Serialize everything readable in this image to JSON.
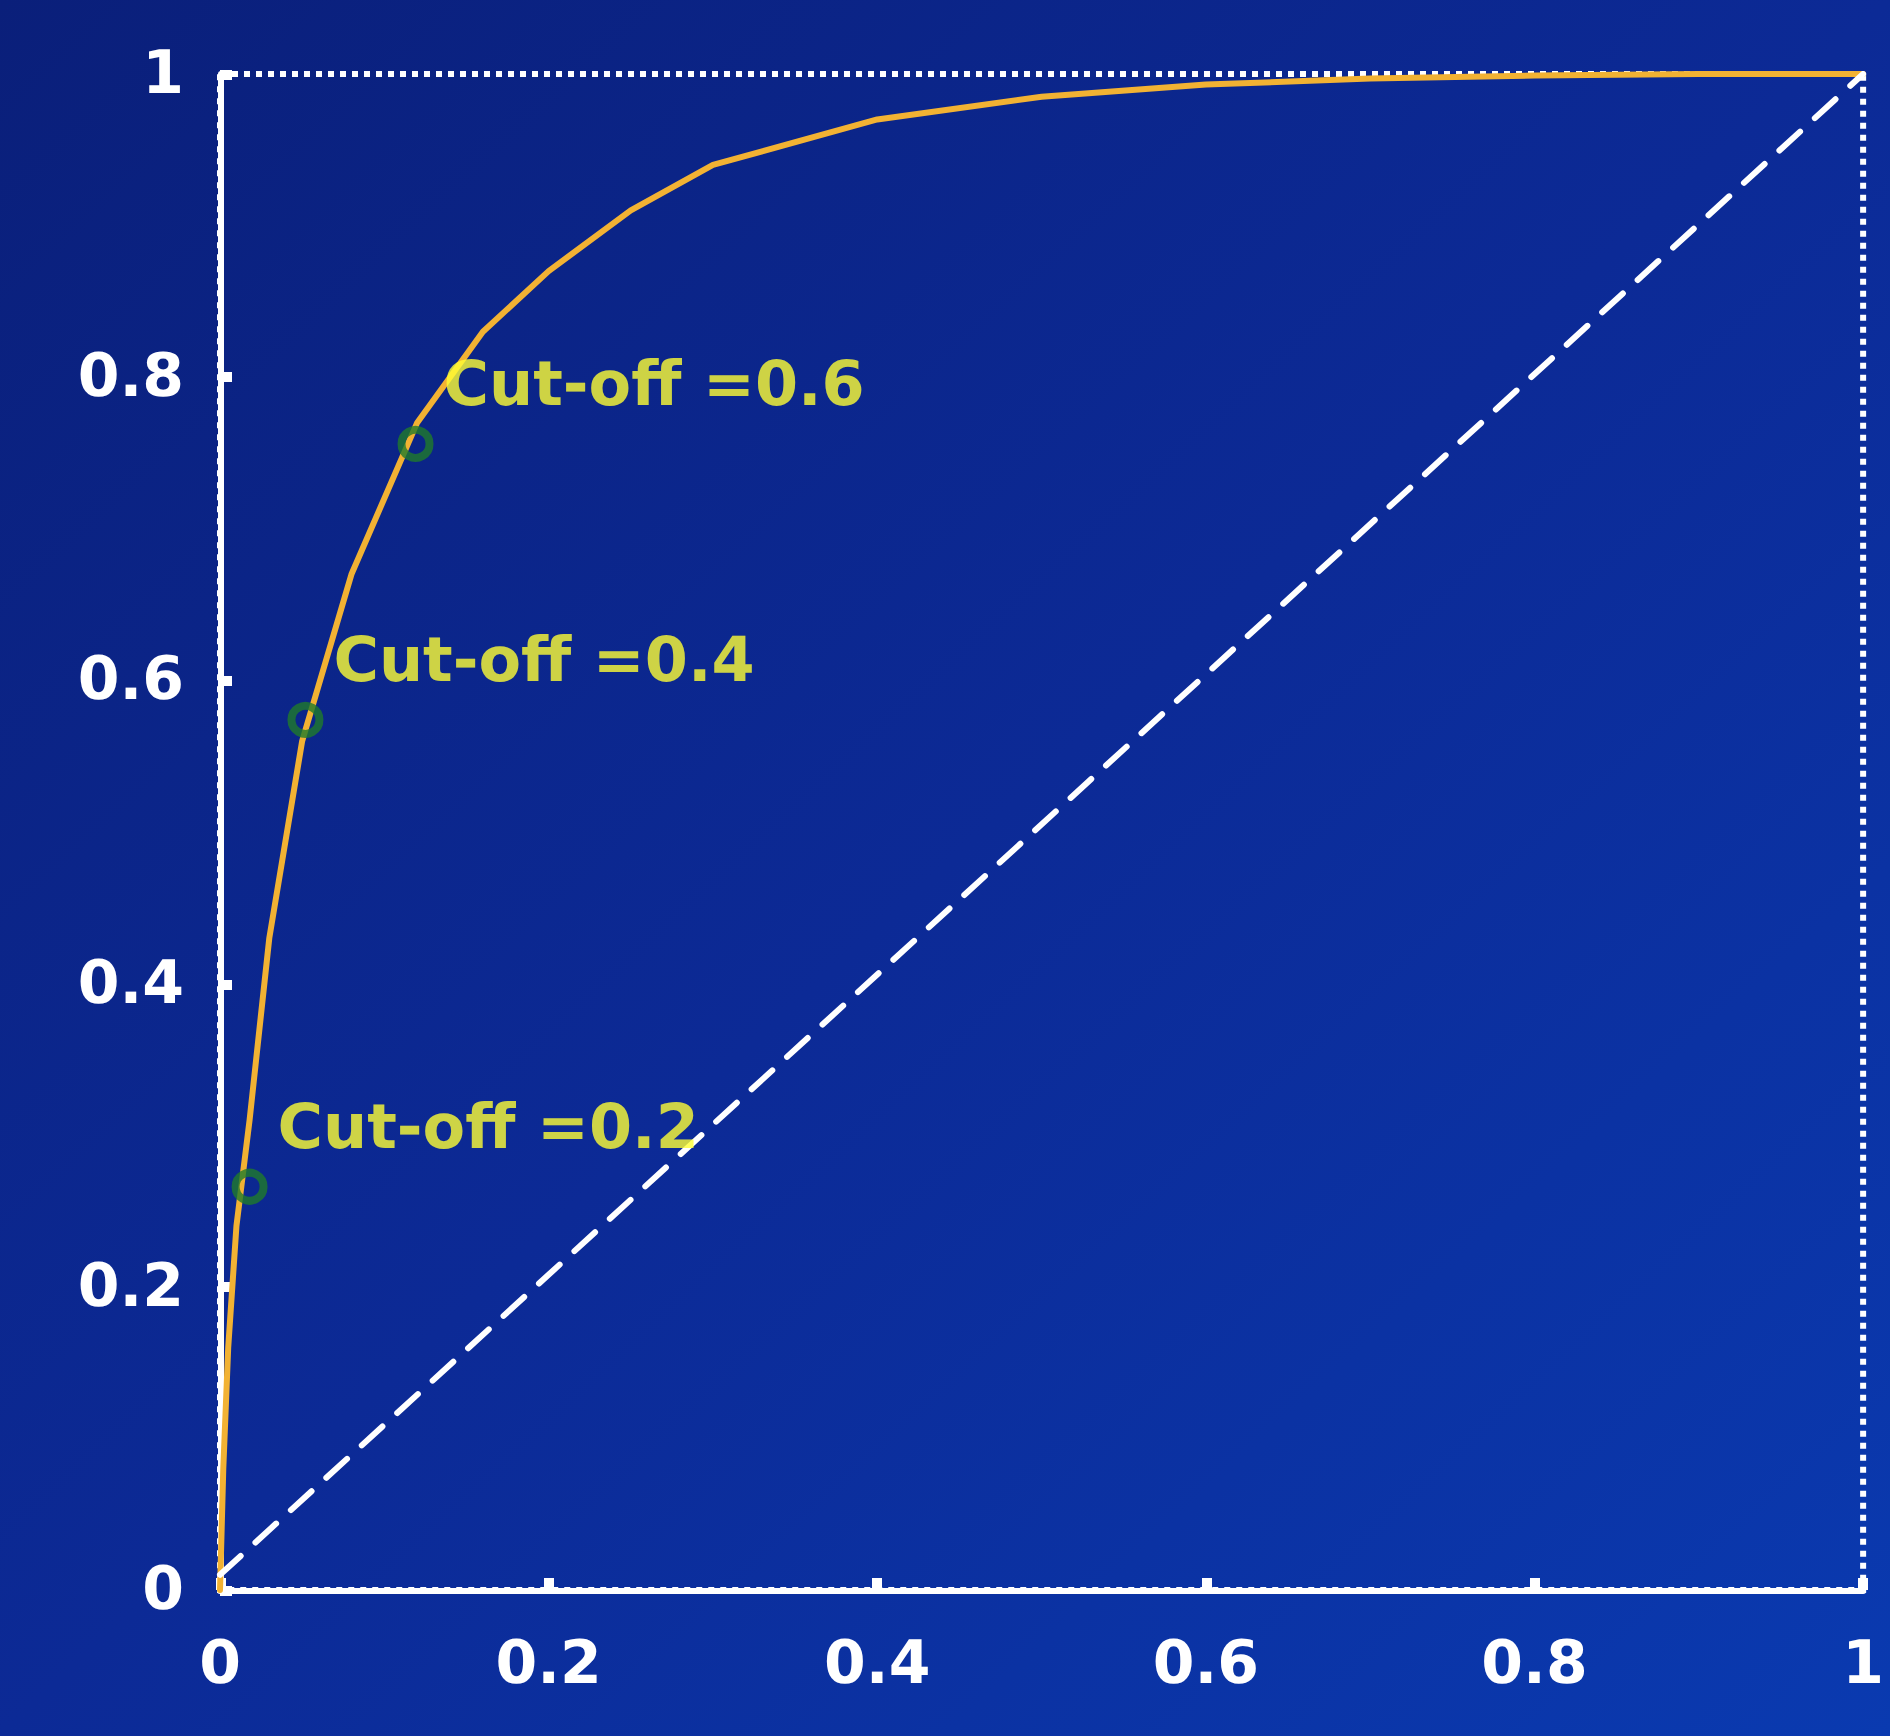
{
  "chart_data": {
    "type": "line",
    "xlim": [
      0,
      1
    ],
    "ylim": [
      0,
      1
    ],
    "xticks": [
      0,
      0.2,
      0.4,
      0.6,
      0.8,
      1
    ],
    "yticks": [
      0,
      0.2,
      0.4,
      0.6,
      0.8,
      1
    ],
    "grid": false,
    "series": [
      {
        "type": "line",
        "color": "#f2b233",
        "marker": "none",
        "line_style": "solid",
        "x": [
          0,
          0.002,
          0.005,
          0.01,
          0.018,
          0.03,
          0.05,
          0.08,
          0.12,
          0.16,
          0.2,
          0.25,
          0.3,
          0.4,
          0.5,
          0.6,
          0.7,
          0.8,
          0.9,
          1
        ],
        "values": [
          0,
          0.08,
          0.16,
          0.24,
          0.31,
          0.43,
          0.56,
          0.67,
          0.77,
          0.83,
          0.87,
          0.91,
          0.94,
          0.97,
          0.985,
          0.993,
          0.997,
          0.999,
          1,
          1
        ]
      },
      {
        "type": "line",
        "color": "#ffffff",
        "marker": "none",
        "line_style": "dashed",
        "x": [
          0,
          1
        ],
        "values": [
          0.01,
          1
        ]
      },
      {
        "type": "scatter",
        "color": "#1f7a2a",
        "marker": "circle",
        "x": [
          0.018,
          0.052,
          0.119
        ],
        "values": [
          0.266,
          0.574,
          0.756
        ]
      }
    ],
    "annotations": [
      {
        "text": "Cut-off =0.2",
        "x": 0.018,
        "y": 0.266
      },
      {
        "text": "Cut-off =0.4",
        "x": 0.052,
        "y": 0.574
      },
      {
        "text": "Cut-off =0.6",
        "x": 0.119,
        "y": 0.756
      }
    ]
  }
}
